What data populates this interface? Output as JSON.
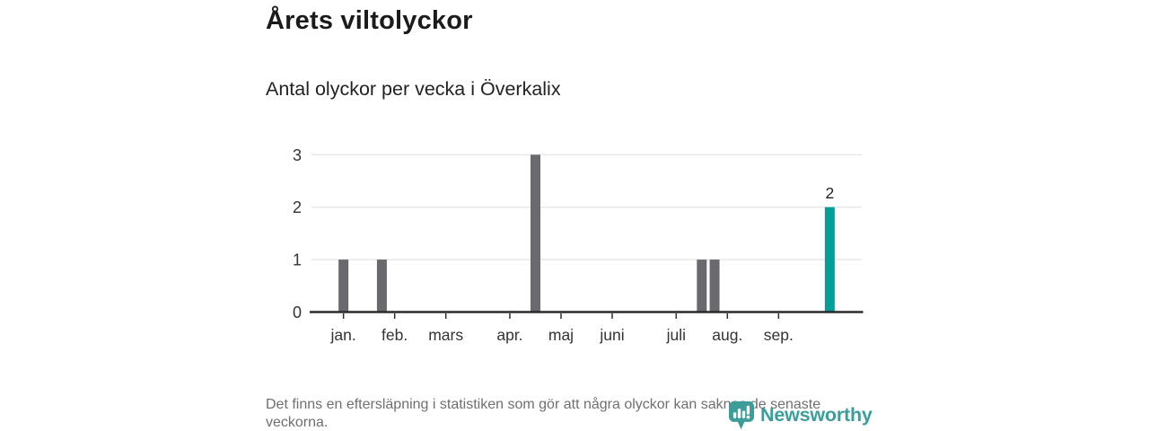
{
  "header": {
    "title": "Årets viltolyckor",
    "subtitle": "Antal olyckor per vecka i Överkalix"
  },
  "footer": {
    "note": "Det finns en eftersläpning i statistiken som gör att några olyckor kan saknas de senaste veckorna.",
    "logo_text": "Newsworthy"
  },
  "colors": {
    "bar_default": "#6a696d",
    "bar_highlight": "#00a099",
    "axis": "#2b2b2b",
    "tick": "#2f2f2f",
    "gridline": "#e8e8e8",
    "axis_label": "#333333",
    "value_label": "#222222",
    "note_gray": "#6f6f6f",
    "logo_teal": "#3d9d98"
  },
  "chart_data": {
    "type": "bar",
    "title": "Årets viltolyckor",
    "subtitle": "Antal olyckor per vecka i Överkalix",
    "xlabel": "",
    "ylabel": "",
    "x_unit": "week",
    "n_weeks": 43,
    "ylim": [
      0,
      3
    ],
    "y_ticks": [
      0,
      1,
      2,
      3
    ],
    "grid": "horizontal",
    "legend": "none",
    "month_ticks": [
      {
        "label": "jan.",
        "pos": 2.5
      },
      {
        "label": "feb.",
        "pos": 6.5
      },
      {
        "label": "mars",
        "pos": 10.5
      },
      {
        "label": "apr.",
        "pos": 15.5
      },
      {
        "label": "maj",
        "pos": 19.5
      },
      {
        "label": "juni",
        "pos": 23.5
      },
      {
        "label": "juli",
        "pos": 28.5
      },
      {
        "label": "aug.",
        "pos": 32.5
      },
      {
        "label": "sep.",
        "pos": 36.5
      }
    ],
    "bars": [
      {
        "week": 2,
        "value": 1,
        "highlight": false,
        "label": ""
      },
      {
        "week": 5,
        "value": 1,
        "highlight": false,
        "label": ""
      },
      {
        "week": 17,
        "value": 3,
        "highlight": false,
        "label": ""
      },
      {
        "week": 30,
        "value": 1,
        "highlight": false,
        "label": ""
      },
      {
        "week": 31,
        "value": 1,
        "highlight": false,
        "label": ""
      },
      {
        "week": 40,
        "value": 2,
        "highlight": true,
        "label": "2"
      }
    ]
  }
}
